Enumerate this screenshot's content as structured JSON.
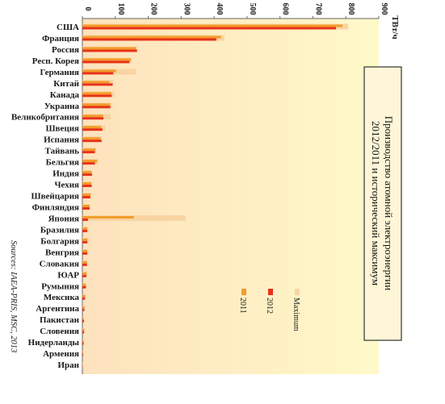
{
  "chart_data": {
    "type": "bar",
    "orientation": "horizontal",
    "title": "Производство атомной электроэнергии 2012/2011 и исторический максимум",
    "unit": "ТВт/ч",
    "source": "Sources: IAEA-PRIS, MSC, 2013",
    "xlim": [
      0,
      900
    ],
    "xticks": [
      0,
      100,
      200,
      300,
      400,
      500,
      600,
      700,
      800,
      900
    ],
    "grid": false,
    "legend_position": "right",
    "categories": [
      "США",
      "Франция",
      "Россия",
      "Респ. Корея",
      "Германия",
      "Китай",
      "Канада",
      "Украина",
      "Великобритания",
      "Швеция",
      "Испания",
      "Тайвань",
      "Бельгия",
      "Индия",
      "Чехия",
      "Швейцария",
      "Финляндия",
      "Япония",
      "Бразилия",
      "Болгария",
      "Венгрия",
      "Словакия",
      "ЮАР",
      "Румыния",
      "Мексика",
      "Аргентина",
      "Пакистан",
      "Словения",
      "Нидерланды",
      "Армения",
      "Иран"
    ],
    "series": [
      {
        "name": "Maximum",
        "color": "#f8d4a2",
        "values": [
          807,
          431,
          166,
          150,
          162,
          93,
          98,
          90,
          86,
          70,
          61,
          41,
          48,
          30,
          29,
          26,
          23,
          313,
          16,
          19,
          15,
          15,
          15,
          11,
          10,
          8,
          5,
          6,
          4,
          3,
          1
        ]
      },
      {
        "name": "2012",
        "color": "#e8321a",
        "values": [
          770,
          407,
          166,
          143,
          94,
          92,
          89,
          85,
          64,
          61,
          58,
          38,
          38,
          29,
          28,
          24,
          22,
          17,
          15,
          15,
          15,
          14,
          12,
          11,
          8,
          6,
          5,
          5,
          4,
          2,
          1
        ]
      },
      {
        "name": "2011",
        "color": "#f39c2a",
        "values": [
          790,
          421,
          162,
          147,
          102,
          82,
          88,
          84,
          63,
          58,
          55,
          40,
          45,
          28,
          27,
          25,
          22,
          156,
          15,
          15,
          15,
          14,
          13,
          11,
          9,
          6,
          4,
          6,
          4,
          2,
          0
        ]
      }
    ]
  }
}
